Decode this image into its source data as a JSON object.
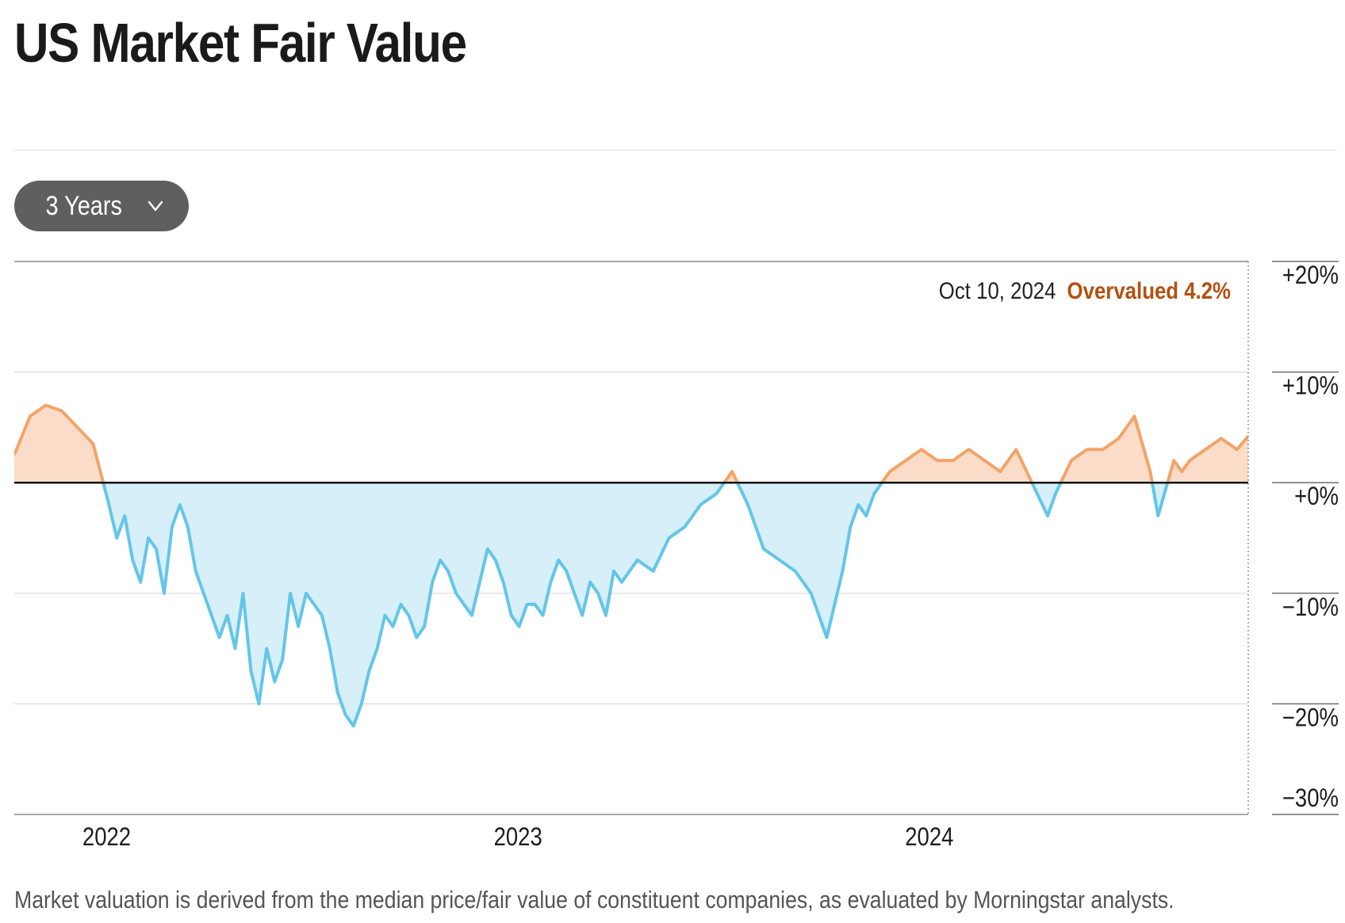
{
  "title": "US Market Fair Value",
  "range_selector": {
    "label": "3 Years",
    "icon": "chevron-down-icon"
  },
  "footnote": "Market valuation is derived from the median price/fair value of constituent companies, as evaluated by Morningstar analysts.",
  "annotation": {
    "date": "Oct 10, 2024",
    "status": "Overvalued 4.2%"
  },
  "colors": {
    "overvalued_line": "#f2a46a",
    "overvalued_fill": "#fbdcc8",
    "undervalued_line": "#63c6e8",
    "undervalued_fill": "#d6eff9",
    "status_text": "#b3500f",
    "zero_line": "#111111",
    "grid": "#d9d9d9"
  },
  "chart_data": {
    "type": "area",
    "ylim": [
      -30,
      20
    ],
    "y_ticks": [
      "+20%",
      "+10%",
      "+0%",
      "−10%",
      "−20%",
      "−30%"
    ],
    "y_tick_values": [
      20,
      10,
      0,
      -10,
      -20,
      -30
    ],
    "x_ticks": [
      "2022",
      "2023",
      "2024"
    ],
    "x_tick_dates": [
      "2022-01-01",
      "2023-01-01",
      "2024-01-01"
    ],
    "x_range": [
      "2021-10-11",
      "2024-10-10"
    ],
    "grid": true,
    "series": [
      {
        "x": [
          "2021-10-11",
          "2021-10-25",
          "2021-11-08",
          "2021-11-22",
          "2021-12-06",
          "2021-12-20",
          "2022-01-03",
          "2022-01-10",
          "2022-01-17",
          "2022-01-24",
          "2022-01-31",
          "2022-02-07",
          "2022-02-14",
          "2022-02-21",
          "2022-02-28",
          "2022-03-07",
          "2022-03-14",
          "2022-03-21",
          "2022-03-28",
          "2022-04-04",
          "2022-04-11",
          "2022-04-18",
          "2022-04-25",
          "2022-05-02",
          "2022-05-09",
          "2022-05-16",
          "2022-05-23",
          "2022-05-30",
          "2022-06-06",
          "2022-06-13",
          "2022-06-20",
          "2022-06-27",
          "2022-07-04",
          "2022-07-11",
          "2022-07-18",
          "2022-07-25",
          "2022-08-01",
          "2022-08-08",
          "2022-08-15",
          "2022-08-22",
          "2022-08-29",
          "2022-09-05",
          "2022-09-12",
          "2022-09-19",
          "2022-09-26",
          "2022-10-03",
          "2022-10-10",
          "2022-10-17",
          "2022-10-24",
          "2022-10-31",
          "2022-11-07",
          "2022-11-14",
          "2022-11-21",
          "2022-11-28",
          "2022-12-05",
          "2022-12-12",
          "2022-12-19",
          "2022-12-26",
          "2023-01-02",
          "2023-01-09",
          "2023-01-16",
          "2023-01-23",
          "2023-01-30",
          "2023-02-06",
          "2023-02-13",
          "2023-02-20",
          "2023-02-27",
          "2023-03-06",
          "2023-03-13",
          "2023-03-20",
          "2023-03-27",
          "2023-04-03",
          "2023-04-17",
          "2023-05-01",
          "2023-05-15",
          "2023-05-29",
          "2023-06-12",
          "2023-06-26",
          "2023-07-10",
          "2023-07-24",
          "2023-07-31",
          "2023-08-07",
          "2023-08-21",
          "2023-09-04",
          "2023-09-18",
          "2023-10-02",
          "2023-10-16",
          "2023-10-23",
          "2023-10-30",
          "2023-11-06",
          "2023-11-13",
          "2023-11-27",
          "2023-12-11",
          "2023-12-25",
          "2024-01-08",
          "2024-01-22",
          "2024-02-05",
          "2024-02-19",
          "2024-03-04",
          "2024-03-18",
          "2024-04-01",
          "2024-04-15",
          "2024-04-22",
          "2024-05-06",
          "2024-05-20",
          "2024-06-03",
          "2024-06-17",
          "2024-07-01",
          "2024-07-15",
          "2024-07-22",
          "2024-08-05",
          "2024-08-12",
          "2024-08-19",
          "2024-09-02",
          "2024-09-16",
          "2024-09-30",
          "2024-10-10"
        ],
        "values": [
          2.5,
          6,
          7,
          6.5,
          5,
          3.5,
          -2,
          -5,
          -3,
          -7,
          -9,
          -5,
          -6,
          -10,
          -4,
          -2,
          -4,
          -8,
          -10,
          -12,
          -14,
          -12,
          -15,
          -10,
          -17,
          -20,
          -15,
          -18,
          -16,
          -10,
          -13,
          -10,
          -11,
          -12,
          -15,
          -19,
          -21,
          -22,
          -20,
          -17,
          -15,
          -12,
          -13,
          -11,
          -12,
          -14,
          -13,
          -9,
          -7,
          -8,
          -10,
          -11,
          -12,
          -9,
          -6,
          -7,
          -9,
          -12,
          -13,
          -11,
          -11,
          -12,
          -9,
          -7,
          -8,
          -10,
          -12,
          -9,
          -10,
          -12,
          -8,
          -9,
          -7,
          -8,
          -5,
          -4,
          -2,
          -1,
          1,
          -2,
          -4,
          -6,
          -7,
          -8,
          -10,
          -14,
          -8,
          -4,
          -2,
          -3,
          -1,
          1,
          2,
          3,
          2,
          2,
          3,
          2,
          1,
          3,
          0,
          -3,
          -1,
          2,
          3,
          3,
          4,
          6,
          1,
          -3,
          2,
          1,
          2,
          3,
          4,
          3,
          4.2
        ]
      }
    ]
  }
}
